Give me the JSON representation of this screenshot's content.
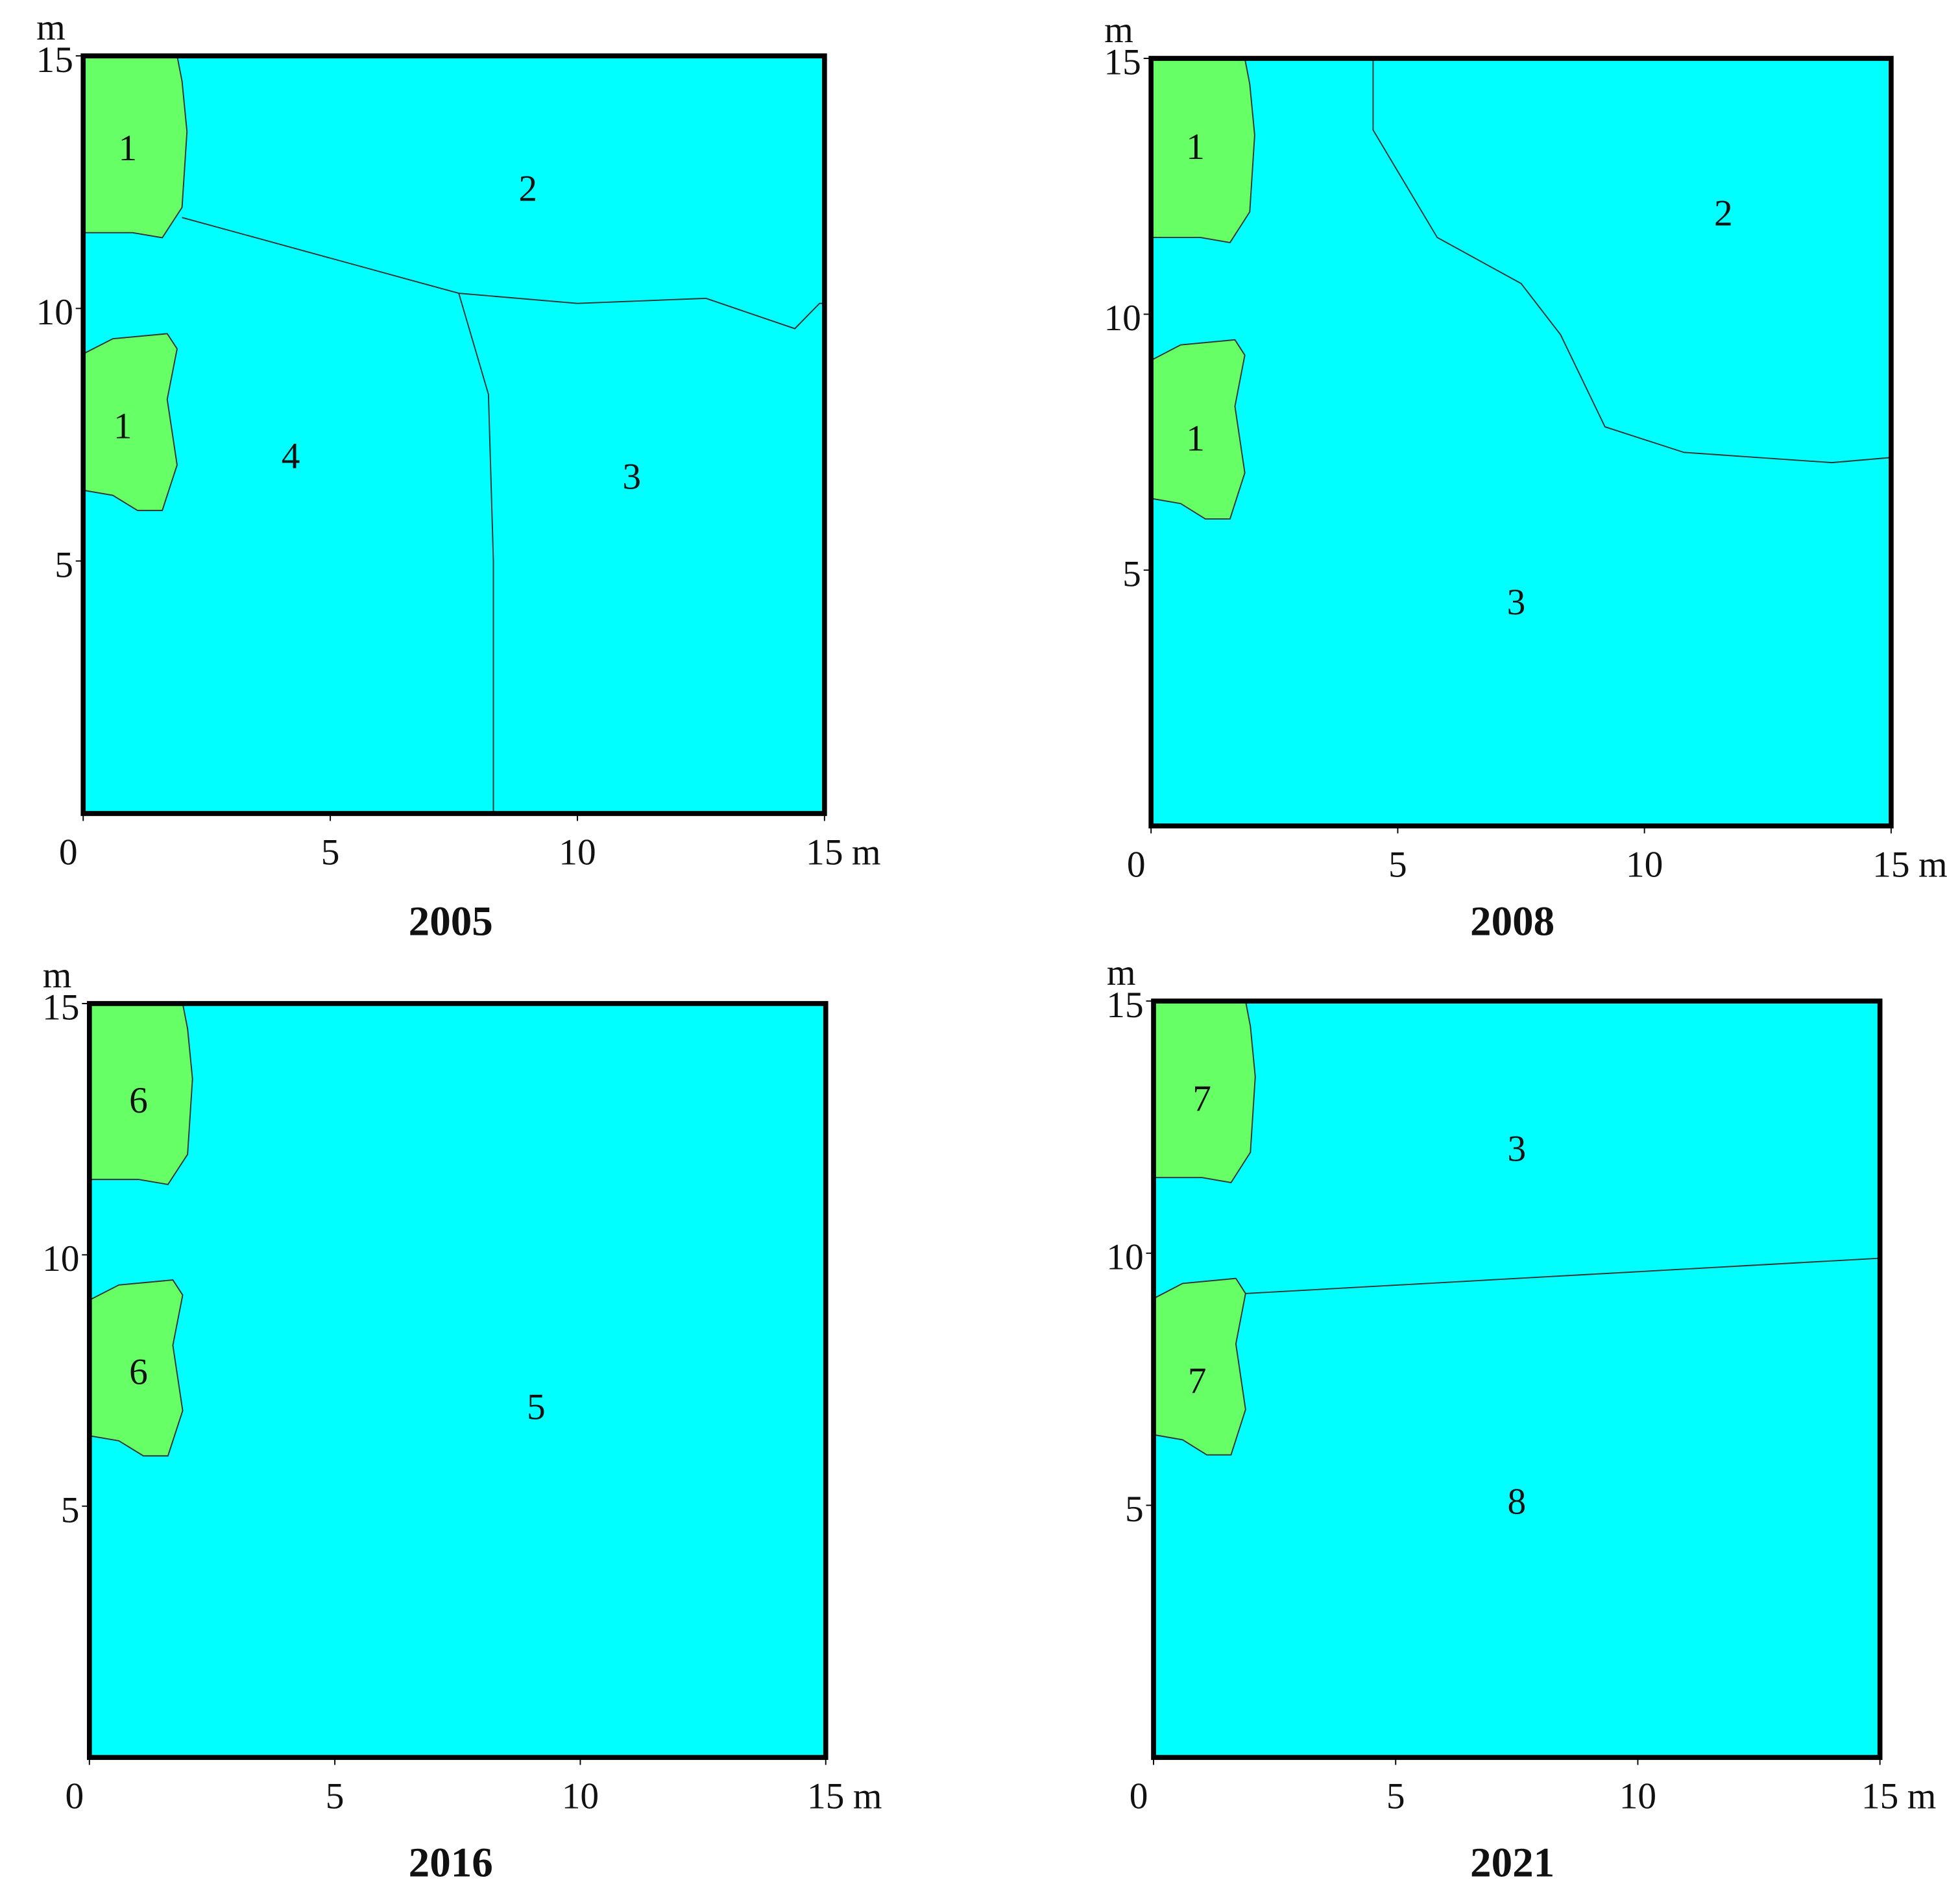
{
  "panels": [
    {
      "year": "2005",
      "x_ticks": [
        0,
        5,
        10,
        15
      ],
      "y_ticks": [
        5,
        10,
        15
      ],
      "x_unit": "m",
      "y_unit": "m",
      "regions": [
        {
          "label": "1"
        },
        {
          "label": "2"
        },
        {
          "label": "1"
        },
        {
          "label": "4"
        },
        {
          "label": "3"
        }
      ]
    },
    {
      "year": "2008",
      "x_ticks": [
        0,
        5,
        10,
        15
      ],
      "y_ticks": [
        5,
        10,
        15
      ],
      "x_unit": "m",
      "y_unit": "m",
      "regions": [
        {
          "label": "1"
        },
        {
          "label": "2"
        },
        {
          "label": "1"
        },
        {
          "label": "3"
        }
      ]
    },
    {
      "year": "2016",
      "x_ticks": [
        0,
        5,
        10,
        15
      ],
      "y_ticks": [
        5,
        10,
        15
      ],
      "x_unit": "m",
      "y_unit": "m",
      "regions": [
        {
          "label": "6"
        },
        {
          "label": "5"
        },
        {
          "label": "6"
        }
      ]
    },
    {
      "year": "2021",
      "x_ticks": [
        0,
        5,
        10,
        15
      ],
      "y_ticks": [
        5,
        10,
        15
      ],
      "x_unit": "m",
      "y_unit": "m",
      "regions": [
        {
          "label": "7"
        },
        {
          "label": "3"
        },
        {
          "label": "7"
        },
        {
          "label": "8"
        }
      ]
    }
  ]
}
